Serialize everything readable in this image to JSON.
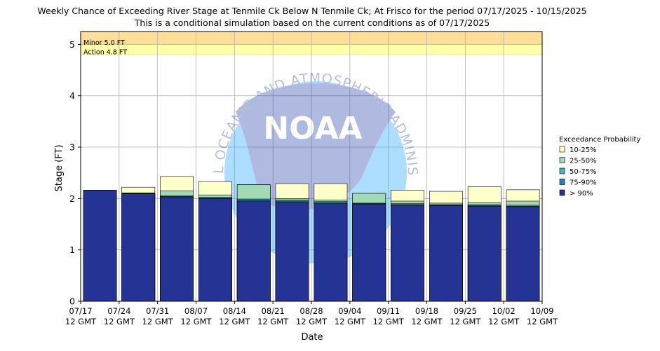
{
  "chart_data": {
    "type": "bar",
    "title": "Weekly Chance of Exceeding River Stage at Tenmile Ck Below N Tenmile Ck; At Frisco for the period 07/17/2025 - 10/15/2025",
    "subtitle": "This is a conditional simulation based on the current conditions as of 07/17/2025",
    "xlabel": "Date",
    "ylabel": "Stage (FT)",
    "ylim": [
      0,
      5.25
    ],
    "y_ticks": [
      "0",
      "1",
      "2",
      "3",
      "4",
      "5"
    ],
    "x_tick_labels": [
      [
        "07/17",
        "12 GMT"
      ],
      [
        "07/24",
        "12 GMT"
      ],
      [
        "07/31",
        "12 GMT"
      ],
      [
        "08/07",
        "12 GMT"
      ],
      [
        "08/14",
        "12 GMT"
      ],
      [
        "08/21",
        "12 GMT"
      ],
      [
        "08/28",
        "12 GMT"
      ],
      [
        "09/04",
        "12 GMT"
      ],
      [
        "09/11",
        "12 GMT"
      ],
      [
        "09/18",
        "12 GMT"
      ],
      [
        "09/25",
        "12 GMT"
      ],
      [
        "10/02",
        "12 GMT"
      ],
      [
        "10/09",
        "12 GMT"
      ]
    ],
    "grid": true,
    "legend_title": "Exceedance Probability",
    "legend_position": "right",
    "flood_levels": [
      {
        "label": "Minor 5.0 FT",
        "value": 5.0,
        "color": "#ffde99"
      },
      {
        "label": "Action 4.8 FT",
        "value": 4.8,
        "color": "#ffffaa"
      }
    ],
    "series": [
      {
        "name": "> 90%",
        "color": "#253494",
        "values": [
          2.16,
          2.09,
          2.03,
          2.0,
          1.95,
          1.93,
          1.9,
          1.89,
          1.87,
          1.86,
          1.85,
          1.84
        ]
      },
      {
        "name": "75-90%",
        "color": "#2c7fb8",
        "values": [
          2.16,
          2.1,
          2.04,
          2.01,
          1.97,
          1.95,
          1.92,
          1.9,
          1.88,
          1.87,
          1.86,
          1.85
        ]
      },
      {
        "name": "50-75%",
        "color": "#41b6c4",
        "values": [
          2.16,
          2.1,
          2.05,
          2.02,
          1.99,
          1.97,
          1.94,
          1.91,
          1.9,
          1.88,
          1.88,
          1.87
        ]
      },
      {
        "name": "25-50%",
        "color": "#a1dab4",
        "values": [
          2.16,
          2.11,
          2.15,
          2.07,
          2.27,
          2.0,
          1.97,
          2.1,
          1.95,
          1.91,
          1.92,
          1.95
        ]
      },
      {
        "name": "10-25%",
        "color": "#ffffcc",
        "values": [
          2.16,
          2.22,
          2.43,
          2.33,
          2.27,
          2.29,
          2.29,
          2.1,
          2.16,
          2.14,
          2.23,
          2.17
        ]
      }
    ]
  },
  "watermark": {
    "arc_text": "NATIONAL OCEANIC AND ATMOSPHERIC ADMINISTRATION",
    "center_text": "NOAA"
  }
}
